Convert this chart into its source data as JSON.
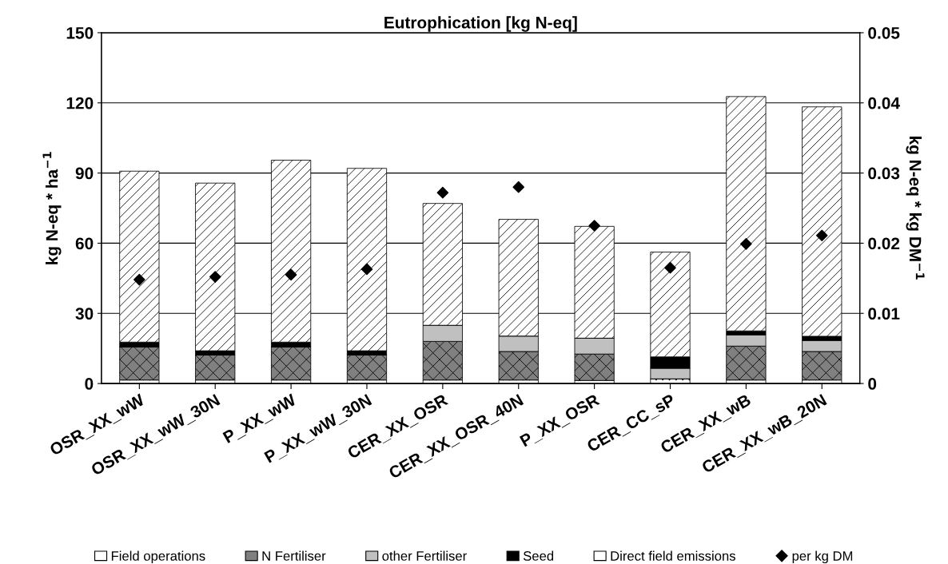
{
  "chart_data": {
    "type": "bar",
    "stacked": true,
    "title": "Eutrophication [kg N-eq]",
    "ylabel": "kg N-eq * ha$^{−1}$",
    "y2label": "kg N-eq * kg DM$^{−1}$",
    "categories": [
      "OSR_XX_wW",
      "OSR_XX_wW_30N",
      "P_XX_wW",
      "P_XX_wW_30N",
      "CER_XX_OSR",
      "CER_XX_OSR_40N",
      "P_XX_OSR",
      "CER_CC_sP",
      "CER_XX_wB",
      "CER_XX_wB_20N"
    ],
    "series": [
      {
        "name": "Field operations",
        "color": "#ffffff",
        "values": [
          1.5,
          1.5,
          1.5,
          1.5,
          1.5,
          1.5,
          1.3,
          2.0,
          1.5,
          1.5
        ]
      },
      {
        "name": "N Fertiliser",
        "color": "#808080",
        "values": [
          14.2,
          10.7,
          14.2,
          10.7,
          16.5,
          12.2,
          11.3,
          0,
          14.5,
          12.2
        ]
      },
      {
        "name": "other Fertiliser",
        "color": "#c0c0c0",
        "values": [
          0,
          0,
          0,
          0,
          6.9,
          6.6,
          6.8,
          4.5,
          4.8,
          4.7
        ]
      },
      {
        "name": "Seed",
        "color": "#000000",
        "values": [
          2.0,
          1.8,
          2.0,
          1.8,
          0,
          0,
          0,
          4.9,
          1.7,
          1.8
        ]
      },
      {
        "name": "Direct field emissions",
        "color": "#ffffff",
        "values": [
          73.1,
          71.7,
          77.8,
          78.0,
          52.1,
          49.9,
          47.8,
          44.8,
          100.2,
          98.1
        ]
      },
      {
        "name": "per kg DM",
        "type": "scatter",
        "axis": "y2",
        "color": "#000000",
        "marker": "diamond",
        "values": [
          0.0148,
          0.0152,
          0.0155,
          0.0163,
          0.0272,
          0.028,
          0.0225,
          0.0165,
          0.0199,
          0.0211
        ]
      }
    ],
    "ylim": [
      0,
      150
    ],
    "yticks": [
      0,
      30,
      60,
      90,
      120,
      150
    ],
    "y2lim": [
      0,
      0.05
    ],
    "y2ticks": [
      {
        "value": 0,
        "label": "0"
      },
      0.01,
      0.02,
      0.03,
      0.04,
      0.05
    ],
    "grid": "y",
    "legend": "bottom"
  }
}
